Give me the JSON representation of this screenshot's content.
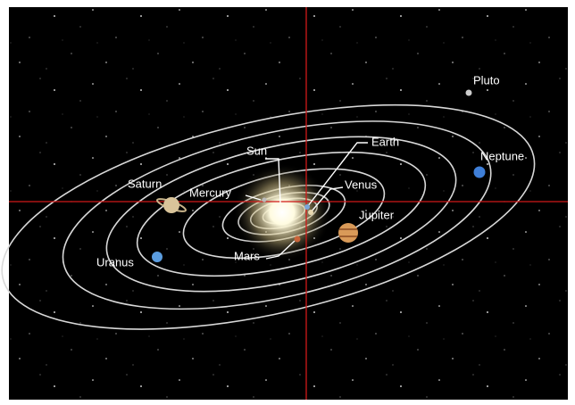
{
  "bodies": [
    {
      "label": "Sun"
    },
    {
      "label": "Mercury"
    },
    {
      "label": "Venus"
    },
    {
      "label": "Earth"
    },
    {
      "label": "Mars"
    },
    {
      "label": "Jupiter"
    },
    {
      "label": "Saturn"
    },
    {
      "label": "Uranus"
    },
    {
      "label": "Neptune"
    },
    {
      "label": "Pluto"
    }
  ]
}
